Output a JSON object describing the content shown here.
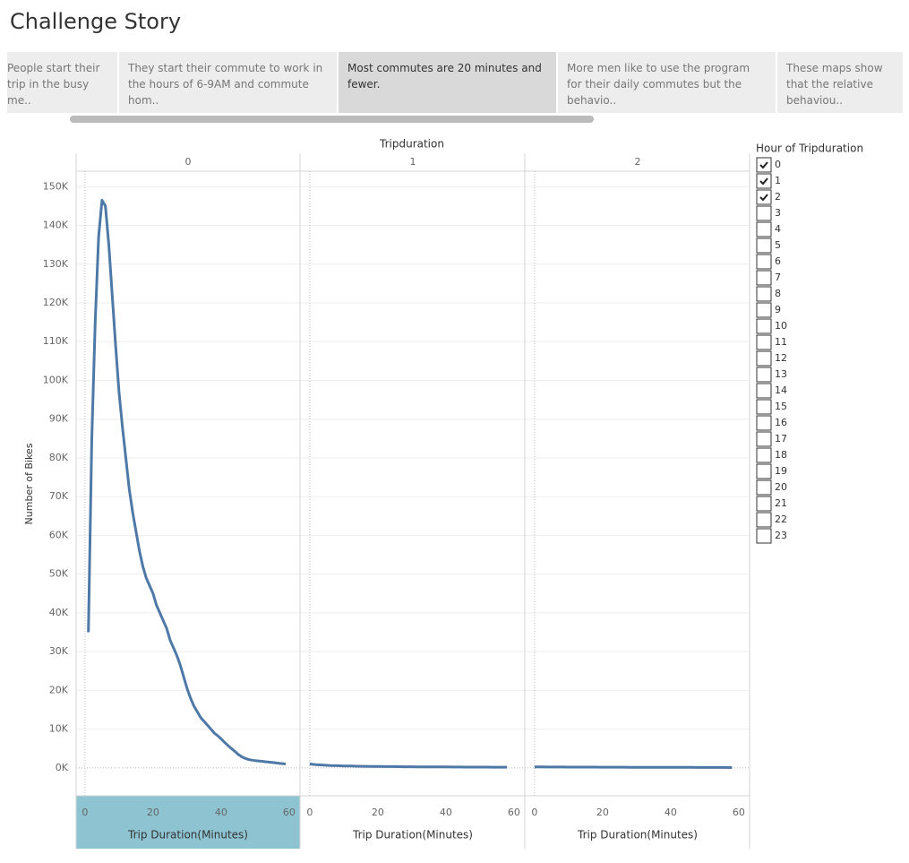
{
  "title": "Challenge Story",
  "story": {
    "selected": 2,
    "points": [
      "People start their trip in the busy me..",
      "They start their commute to work in the hours of 6-9AM and commute hom..",
      "Most commutes are 20 minutes and fewer.",
      "More men like to use the program for their daily commutes but the behavio..",
      "These maps show that the relative behaviou.."
    ]
  },
  "chart_data": {
    "type": "line",
    "column_header": "Tripduration",
    "y_label": "Number of Bikes",
    "color": "#4e79a7",
    "grid": true,
    "ylim": [
      -7200,
      154000
    ],
    "yticks": [
      {
        "value": 0,
        "label": "0K"
      },
      {
        "value": 10000,
        "label": "10K"
      },
      {
        "value": 20000,
        "label": "20K"
      },
      {
        "value": 30000,
        "label": "30K"
      },
      {
        "value": 40000,
        "label": "40K"
      },
      {
        "value": 50000,
        "label": "50K"
      },
      {
        "value": 60000,
        "label": "60K"
      },
      {
        "value": 70000,
        "label": "70K"
      },
      {
        "value": 80000,
        "label": "80K"
      },
      {
        "value": 90000,
        "label": "90K"
      },
      {
        "value": 100000,
        "label": "100K"
      },
      {
        "value": 110000,
        "label": "110K"
      },
      {
        "value": 120000,
        "label": "120K"
      },
      {
        "value": 130000,
        "label": "130K"
      },
      {
        "value": 140000,
        "label": "140K"
      },
      {
        "value": 150000,
        "label": "150K"
      }
    ],
    "panels": [
      {
        "label": "0",
        "x_label": "Trip Duration(Minutes)",
        "xlim": [
          -2.6,
          63.2
        ],
        "xticks": [
          0,
          20,
          40,
          60
        ],
        "x": [
          1,
          2,
          3,
          4,
          5,
          6,
          7,
          8,
          9,
          10,
          11,
          12,
          13,
          14,
          15,
          16,
          17,
          18,
          19,
          20,
          21,
          22,
          23,
          24,
          25,
          26,
          27,
          28,
          29,
          30,
          31,
          32,
          33,
          34,
          35,
          36,
          37,
          38,
          39,
          40,
          41,
          42,
          43,
          44,
          45,
          46,
          47,
          48,
          49,
          50,
          51,
          52,
          53,
          54,
          55,
          56,
          57,
          58,
          59
        ],
        "values": [
          35000,
          85000,
          115000,
          137000,
          146500,
          145000,
          135000,
          122000,
          109000,
          97000,
          88000,
          80000,
          72000,
          66000,
          61000,
          56000,
          52000,
          49000,
          47000,
          45000,
          42000,
          40000,
          38000,
          36000,
          33000,
          31000,
          29000,
          26500,
          23500,
          20500,
          18000,
          16000,
          14500,
          13000,
          12000,
          11000,
          10000,
          9000,
          8300,
          7500,
          6600,
          5800,
          5000,
          4300,
          3500,
          2900,
          2500,
          2200,
          2000,
          1900,
          1800,
          1700,
          1600,
          1500,
          1400,
          1300,
          1200,
          1100,
          1000
        ]
      },
      {
        "label": "1",
        "x_label": "Trip Duration(Minutes)",
        "xlim": [
          -2.6,
          63.2
        ],
        "xticks": [
          0,
          20,
          40,
          60
        ],
        "x": [
          0,
          2,
          4,
          6,
          8,
          10,
          12,
          14,
          16,
          18,
          20,
          22,
          24,
          26,
          28,
          30,
          32,
          34,
          36,
          38,
          40,
          42,
          44,
          46,
          48,
          50,
          52,
          54,
          56,
          58
        ],
        "values": [
          1000,
          800,
          700,
          620,
          560,
          510,
          470,
          440,
          410,
          390,
          370,
          350,
          330,
          310,
          300,
          290,
          280,
          270,
          260,
          250,
          240,
          230,
          220,
          210,
          200,
          195,
          190,
          185,
          180,
          175
        ]
      },
      {
        "label": "2",
        "x_label": "Trip Duration(Minutes)",
        "xlim": [
          -2.6,
          63.2
        ],
        "xticks": [
          0,
          20,
          40,
          60
        ],
        "x": [
          0,
          2,
          4,
          6,
          8,
          10,
          12,
          14,
          16,
          18,
          20,
          22,
          24,
          26,
          28,
          30,
          32,
          34,
          36,
          38,
          40,
          42,
          44,
          46,
          48,
          50,
          52,
          54,
          56,
          58
        ],
        "values": [
          250,
          240,
          230,
          220,
          215,
          210,
          205,
          200,
          195,
          190,
          185,
          180,
          175,
          170,
          165,
          160,
          155,
          150,
          145,
          140,
          135,
          130,
          125,
          120,
          115,
          110,
          105,
          100,
          100,
          95
        ]
      }
    ]
  },
  "filter": {
    "title": "Hour of Tripduration",
    "options": [
      "0",
      "1",
      "2",
      "3",
      "4",
      "5",
      "6",
      "7",
      "8",
      "9",
      "10",
      "11",
      "12",
      "13",
      "14",
      "15",
      "16",
      "17",
      "18",
      "19",
      "20",
      "21",
      "22",
      "23"
    ],
    "checked": [
      true,
      true,
      true,
      false,
      false,
      false,
      false,
      false,
      false,
      false,
      false,
      false,
      false,
      false,
      false,
      false,
      false,
      false,
      false,
      false,
      false,
      false,
      false,
      false
    ]
  }
}
